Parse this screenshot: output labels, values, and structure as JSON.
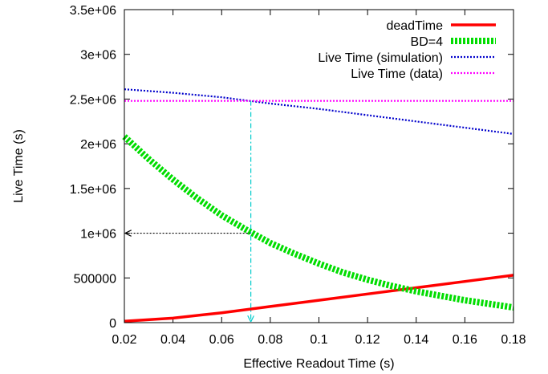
{
  "chart_data": {
    "type": "line",
    "title": "",
    "xlabel": "Effective Readout Time (s)",
    "ylabel": "Live Time (s)",
    "xlim": [
      0.02,
      0.18
    ],
    "ylim": [
      0,
      3500000
    ],
    "x_ticks": [
      0.02,
      0.04,
      0.06,
      0.08,
      0.1,
      0.12,
      0.14,
      0.16,
      0.18
    ],
    "x_tick_labels": [
      "0.02",
      "0.04",
      "0.06",
      "0.08",
      "0.1",
      "0.12",
      "0.14",
      "0.16",
      "0.18"
    ],
    "y_ticks": [
      0,
      500000,
      1000000,
      1500000,
      2000000,
      2500000,
      3000000,
      3500000
    ],
    "y_tick_labels": [
      "0",
      "500000",
      "1e+06",
      "1.5e+06",
      "2e+06",
      "2.5e+06",
      "3e+06",
      "3.5e+06"
    ],
    "grid": false,
    "legend_position": "top-right",
    "series": [
      {
        "name": "deadTime",
        "color": "#ff0000",
        "style": "solid",
        "x": [
          0.02,
          0.04,
          0.06,
          0.08,
          0.1,
          0.12,
          0.14,
          0.16,
          0.18
        ],
        "y": [
          15000,
          50000,
          110000,
          180000,
          250000,
          320000,
          390000,
          460000,
          530000
        ]
      },
      {
        "name": "BD=4",
        "color": "#00dd00",
        "style": "dotted-thick",
        "x": [
          0.02,
          0.03,
          0.04,
          0.05,
          0.06,
          0.07,
          0.08,
          0.09,
          0.1,
          0.11,
          0.12,
          0.13,
          0.14,
          0.15,
          0.16,
          0.17,
          0.18
        ],
        "y": [
          2080000,
          1830000,
          1600000,
          1390000,
          1200000,
          1040000,
          890000,
          770000,
          660000,
          560000,
          480000,
          410000,
          350000,
          300000,
          250000,
          210000,
          170000
        ]
      },
      {
        "name": "Live Time (simulation)",
        "color": "#0000cc",
        "style": "dotted",
        "x": [
          0.02,
          0.04,
          0.06,
          0.08,
          0.1,
          0.12,
          0.14,
          0.16,
          0.18
        ],
        "y": [
          2610000,
          2570000,
          2520000,
          2450000,
          2390000,
          2320000,
          2250000,
          2180000,
          2110000
        ]
      },
      {
        "name": "Live Time (data)",
        "color": "#ff00ff",
        "style": "dotted",
        "x": [
          0.02,
          0.18
        ],
        "y": [
          2480000,
          2480000
        ]
      }
    ],
    "annotations": [
      {
        "type": "horizontal-arrow",
        "color": "#000000",
        "from": [
          0.072,
          1000000
        ],
        "to": [
          0.02,
          1000000
        ]
      },
      {
        "type": "vertical-arrow",
        "color": "#00cccc",
        "from": [
          0.072,
          2480000
        ],
        "to": [
          0.072,
          0
        ]
      }
    ]
  }
}
